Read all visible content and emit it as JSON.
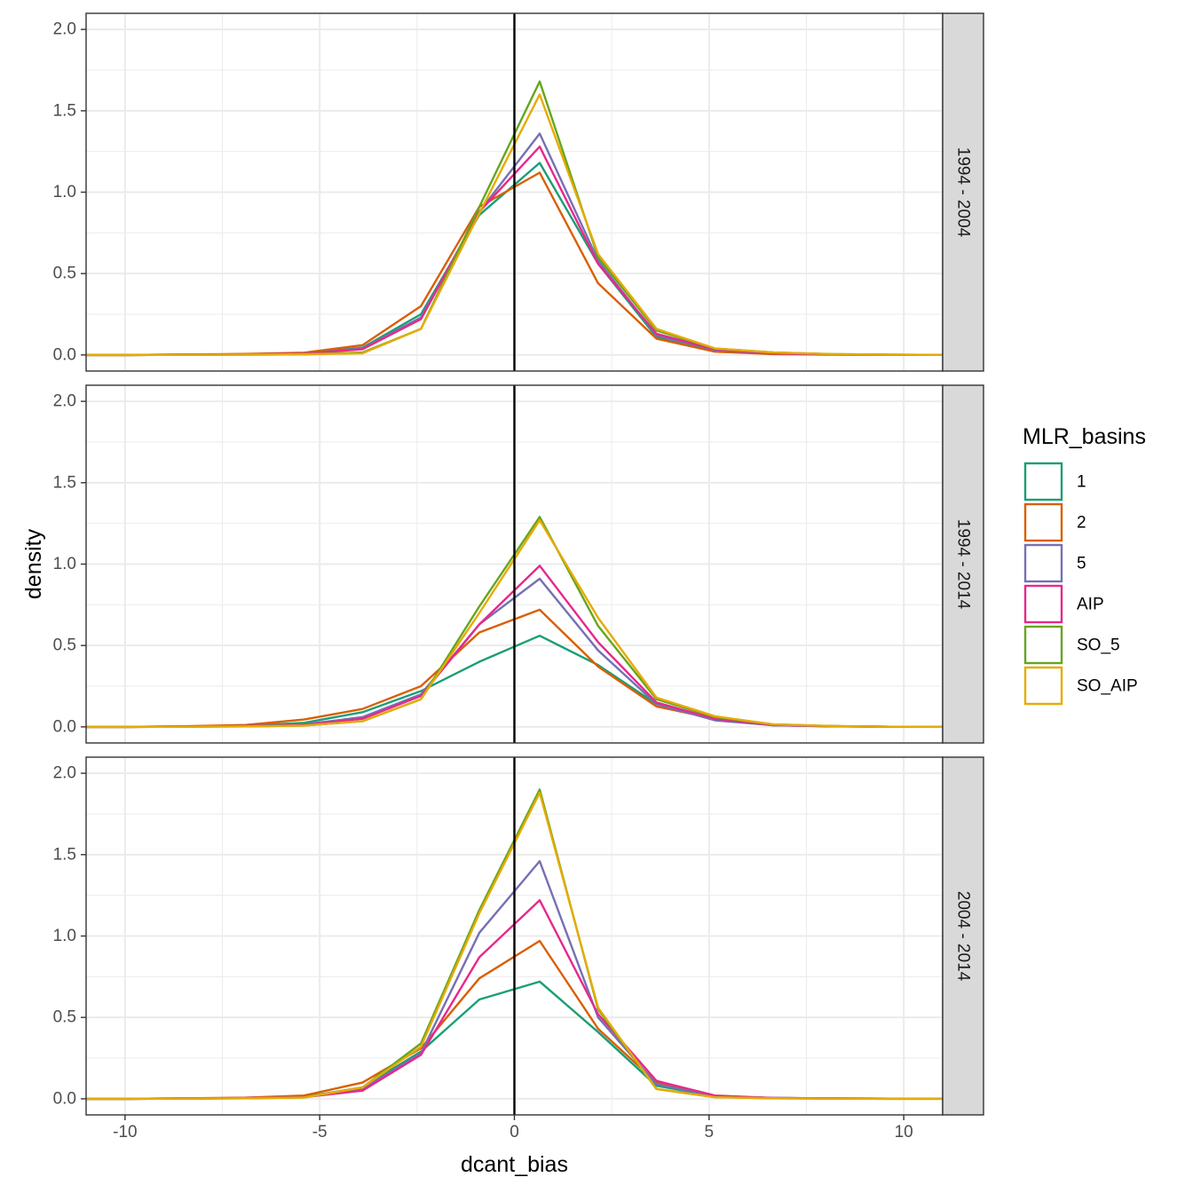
{
  "chart_data": {
    "type": "line",
    "xlabel": "dcant_bias",
    "ylabel": "density",
    "xlim": [
      -11,
      11
    ],
    "ylim": [
      0,
      2
    ],
    "x_ticks": [
      -10,
      -5,
      0,
      5,
      10
    ],
    "x_tick_labels": [
      "-10",
      "-5",
      "0",
      "5",
      "10"
    ],
    "y_ticks": [
      0,
      0.5,
      1,
      1.5,
      2
    ],
    "y_tick_labels": [
      "0.0",
      "0.5",
      "1.0",
      "1.5",
      "2.0"
    ],
    "grid": true,
    "vline_x": 0,
    "legend": {
      "title": "MLR_basins",
      "position": "right"
    },
    "colors": {
      "1": "#1B9E77",
      "2": "#D95F02",
      "5": "#7570B3",
      "AIP": "#E7298A",
      "SO_5": "#66A61E",
      "SO_AIP": "#E6AB02"
    },
    "x": [
      -11.4,
      -9.9,
      -8.4,
      -6.9,
      -5.4,
      -3.9,
      -2.4,
      -0.9,
      0.65,
      2.15,
      3.65,
      5.15,
      6.65,
      8.15,
      9.65,
      11.15
    ],
    "panels": [
      {
        "strip": "1994 - 2004",
        "series": [
          {
            "name": "1",
            "values": [
              0,
              0,
              0.002,
              0.004,
              0.008,
              0.045,
              0.25,
              0.86,
              1.18,
              0.56,
              0.11,
              0.03,
              0.01,
              0.003,
              0.001,
              0
            ]
          },
          {
            "name": "2",
            "values": [
              0,
              0,
              0.003,
              0.006,
              0.014,
              0.06,
              0.3,
              0.91,
              1.12,
              0.44,
              0.1,
              0.02,
              0.005,
              0.002,
              0.001,
              0
            ]
          },
          {
            "name": "5",
            "values": [
              0,
              0,
              0.002,
              0.003,
              0.008,
              0.04,
              0.23,
              0.88,
              1.36,
              0.58,
              0.12,
              0.03,
              0.01,
              0.003,
              0.001,
              0
            ]
          },
          {
            "name": "AIP",
            "values": [
              0,
              0,
              0.002,
              0.003,
              0.007,
              0.035,
              0.22,
              0.88,
              1.28,
              0.56,
              0.13,
              0.035,
              0.01,
              0.003,
              0.001,
              0
            ]
          },
          {
            "name": "SO_5",
            "values": [
              0,
              0,
              0.001,
              0.002,
              0.004,
              0.015,
              0.16,
              0.91,
              1.68,
              0.6,
              0.15,
              0.04,
              0.015,
              0.005,
              0.002,
              0
            ]
          },
          {
            "name": "SO_AIP",
            "values": [
              0,
              0,
              0.001,
              0.002,
              0.004,
              0.01,
              0.16,
              0.87,
              1.6,
              0.62,
              0.16,
              0.04,
              0.015,
              0.005,
              0.002,
              0
            ]
          }
        ]
      },
      {
        "strip": "1994 - 2014",
        "series": [
          {
            "name": "1",
            "values": [
              0,
              0,
              0.003,
              0.008,
              0.025,
              0.09,
              0.22,
              0.4,
              0.56,
              0.38,
              0.14,
              0.05,
              0.01,
              0.004,
              0.001,
              0
            ]
          },
          {
            "name": "2",
            "values": [
              0,
              0,
              0.004,
              0.012,
              0.045,
              0.11,
              0.25,
              0.58,
              0.72,
              0.37,
              0.125,
              0.05,
              0.01,
              0.004,
              0.001,
              0
            ]
          },
          {
            "name": "5",
            "values": [
              0,
              0,
              0.002,
              0.005,
              0.015,
              0.06,
              0.2,
              0.63,
              0.91,
              0.47,
              0.14,
              0.04,
              0.01,
              0.003,
              0.001,
              0
            ]
          },
          {
            "name": "AIP",
            "values": [
              0,
              0,
              0.002,
              0.004,
              0.012,
              0.05,
              0.19,
              0.63,
              0.99,
              0.52,
              0.15,
              0.05,
              0.012,
              0.004,
              0.001,
              0
            ]
          },
          {
            "name": "SO_5",
            "values": [
              0,
              0,
              0.001,
              0.003,
              0.008,
              0.035,
              0.17,
              0.74,
              1.29,
              0.62,
              0.17,
              0.06,
              0.015,
              0.005,
              0.001,
              0
            ]
          },
          {
            "name": "SO_AIP",
            "values": [
              0,
              0,
              0.001,
              0.003,
              0.008,
              0.035,
              0.17,
              0.7,
              1.27,
              0.67,
              0.18,
              0.065,
              0.015,
              0.005,
              0.001,
              0
            ]
          }
        ]
      },
      {
        "strip": "2004 - 2014",
        "series": [
          {
            "name": "1",
            "values": [
              0,
              0,
              0.002,
              0.005,
              0.012,
              0.07,
              0.29,
              0.61,
              0.72,
              0.41,
              0.08,
              0.015,
              0.005,
              0.002,
              0.001,
              0
            ]
          },
          {
            "name": "2",
            "values": [
              0,
              0,
              0.003,
              0.007,
              0.02,
              0.1,
              0.31,
              0.74,
              0.97,
              0.43,
              0.1,
              0.015,
              0.005,
              0.002,
              0.001,
              0
            ]
          },
          {
            "name": "5",
            "values": [
              0,
              0,
              0.002,
              0.004,
              0.01,
              0.06,
              0.28,
              1.02,
              1.46,
              0.5,
              0.09,
              0.015,
              0.005,
              0.002,
              0.001,
              0
            ]
          },
          {
            "name": "AIP",
            "values": [
              0,
              0,
              0.002,
              0.004,
              0.01,
              0.05,
              0.27,
              0.87,
              1.22,
              0.52,
              0.11,
              0.02,
              0.005,
              0.002,
              0.001,
              0
            ]
          },
          {
            "name": "SO_5",
            "values": [
              0,
              0,
              0.001,
              0.003,
              0.008,
              0.07,
              0.34,
              1.16,
              1.9,
              0.55,
              0.06,
              0.01,
              0.003,
              0.001,
              0,
              0
            ]
          },
          {
            "name": "SO_AIP",
            "values": [
              0,
              0,
              0.001,
              0.003,
              0.008,
              0.07,
              0.32,
              1.14,
              1.88,
              0.56,
              0.06,
              0.01,
              0.003,
              0.001,
              0,
              0
            ]
          }
        ]
      }
    ]
  }
}
